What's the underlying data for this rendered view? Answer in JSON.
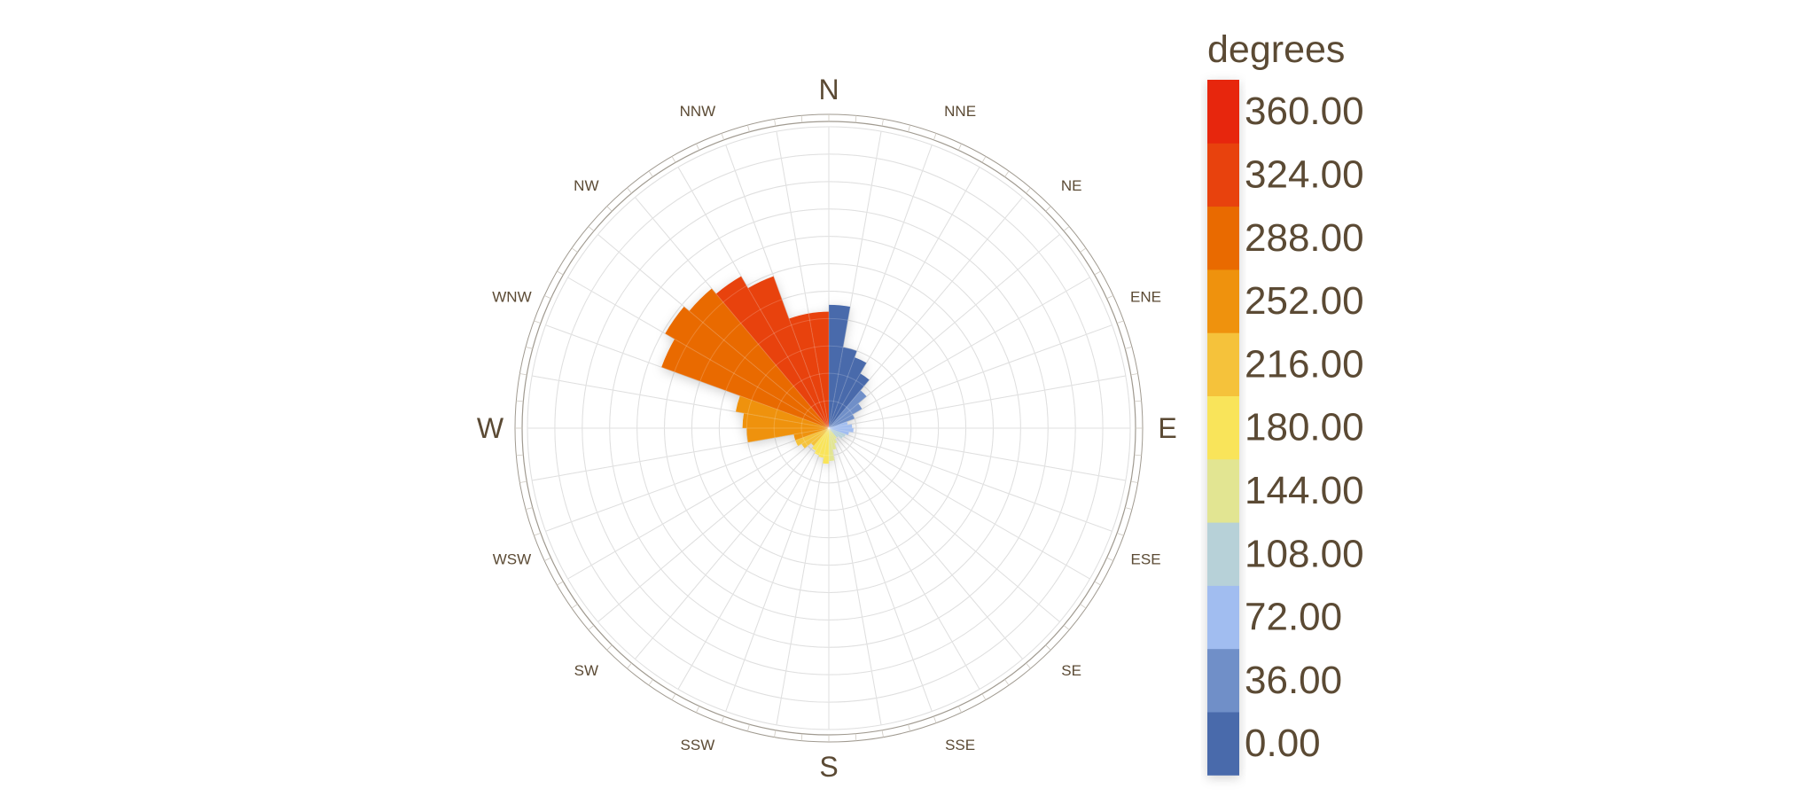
{
  "chart_data": {
    "type": "polar-bar",
    "chart_kind": "wind rose",
    "sectors": 36,
    "sector_width_deg": 10,
    "radial_rings": 11,
    "radial_max": 22,
    "grid": true,
    "legend_position": "right",
    "compass": {
      "major": [
        "N",
        "E",
        "S",
        "W"
      ],
      "minor": [
        "NNE",
        "NE",
        "ENE",
        "ESE",
        "SE",
        "SSE",
        "SSW",
        "SW",
        "WSW",
        "WNW",
        "NW",
        "NNW"
      ]
    },
    "bins": [
      {
        "direction": 5,
        "value": 9.0
      },
      {
        "direction": 15,
        "value": 6.0
      },
      {
        "direction": 25,
        "value": 5.5
      },
      {
        "direction": 35,
        "value": 4.6
      },
      {
        "direction": 45,
        "value": 3.6
      },
      {
        "direction": 55,
        "value": 2.8
      },
      {
        "direction": 65,
        "value": 2.0
      },
      {
        "direction": 75,
        "value": 1.4
      },
      {
        "direction": 85,
        "value": 1.7
      },
      {
        "direction": 95,
        "value": 1.8
      },
      {
        "direction": 105,
        "value": 1.5
      },
      {
        "direction": 115,
        "value": 1.3
      },
      {
        "direction": 125,
        "value": 1.2
      },
      {
        "direction": 135,
        "value": 0.9
      },
      {
        "direction": 145,
        "value": 0.9
      },
      {
        "direction": 155,
        "value": 1.2
      },
      {
        "direction": 165,
        "value": 1.6
      },
      {
        "direction": 175,
        "value": 2.4
      },
      {
        "direction": 185,
        "value": 2.6
      },
      {
        "direction": 195,
        "value": 2.2
      },
      {
        "direction": 205,
        "value": 2.1
      },
      {
        "direction": 215,
        "value": 1.9
      },
      {
        "direction": 225,
        "value": 1.7
      },
      {
        "direction": 235,
        "value": 2.3
      },
      {
        "direction": 245,
        "value": 2.6
      },
      {
        "direction": 255,
        "value": 2.6
      },
      {
        "direction": 265,
        "value": 6.0
      },
      {
        "direction": 275,
        "value": 6.3
      },
      {
        "direction": 285,
        "value": 6.9
      },
      {
        "direction": 295,
        "value": 13.0
      },
      {
        "direction": 305,
        "value": 13.8
      },
      {
        "direction": 315,
        "value": 13.3
      },
      {
        "direction": 325,
        "value": 12.8
      },
      {
        "direction": 335,
        "value": 11.8
      },
      {
        "direction": 345,
        "value": 8.5
      },
      {
        "direction": 355,
        "value": 8.5
      }
    ],
    "colorbar": {
      "title": "degrees",
      "tick_labels": [
        "0.00",
        "36.00",
        "72.00",
        "108.00",
        "144.00",
        "180.00",
        "216.00",
        "252.00",
        "288.00",
        "324.00",
        "360.00"
      ],
      "bands": [
        {
          "from": 0,
          "to": 36,
          "color": "#4a6aab"
        },
        {
          "from": 36,
          "to": 72,
          "color": "#6f8fc8"
        },
        {
          "from": 72,
          "to": 108,
          "color": "#a1bdf0"
        },
        {
          "from": 108,
          "to": 144,
          "color": "#b7d1d8"
        },
        {
          "from": 144,
          "to": 180,
          "color": "#e2e592"
        },
        {
          "from": 180,
          "to": 216,
          "color": "#f9e45a"
        },
        {
          "from": 216,
          "to": 252,
          "color": "#f5c23a"
        },
        {
          "from": 252,
          "to": 288,
          "color": "#ef9208"
        },
        {
          "from": 288,
          "to": 324,
          "color": "#e96b06"
        },
        {
          "from": 324,
          "to": 360,
          "color": "#e8430a"
        },
        {
          "from": 360,
          "to": 396,
          "color": "#e7280b"
        }
      ]
    },
    "colors": {
      "label_text": "#5b4a34",
      "grid_line": "#d8d8d8",
      "frame_line": "#a09a90"
    }
  }
}
